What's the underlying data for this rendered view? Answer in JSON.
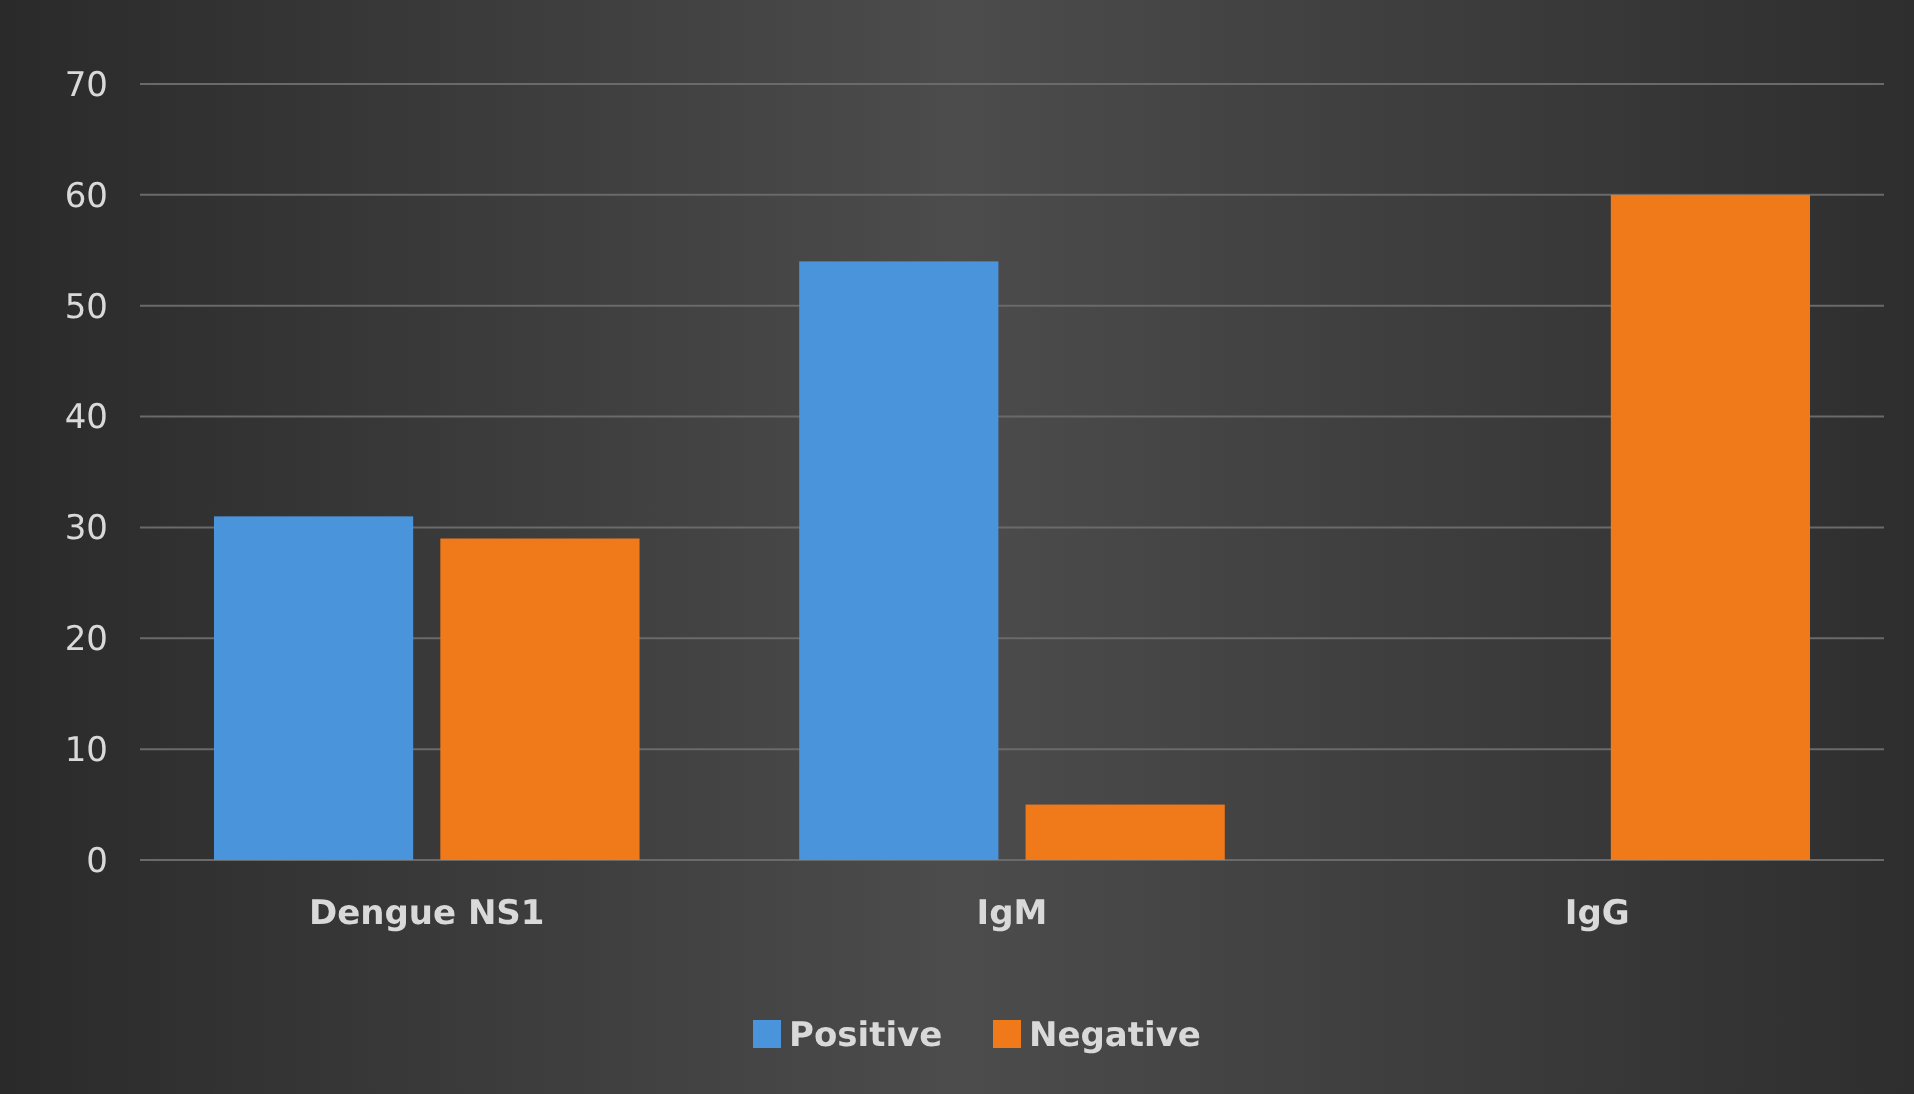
{
  "chart_data": {
    "type": "bar",
    "categories": [
      "Dengue NS1",
      "IgM",
      "IgG"
    ],
    "series": [
      {
        "name": "Positive",
        "color": "#4a94dc",
        "values": [
          31,
          54,
          0
        ]
      },
      {
        "name": "Negative",
        "color": "#f07a1a",
        "values": [
          29,
          5,
          60
        ]
      }
    ],
    "ylim": [
      0,
      70
    ],
    "yticks": [
      0,
      10,
      20,
      30,
      40,
      50,
      60,
      70
    ],
    "grid": "y",
    "legend": "bottom"
  }
}
